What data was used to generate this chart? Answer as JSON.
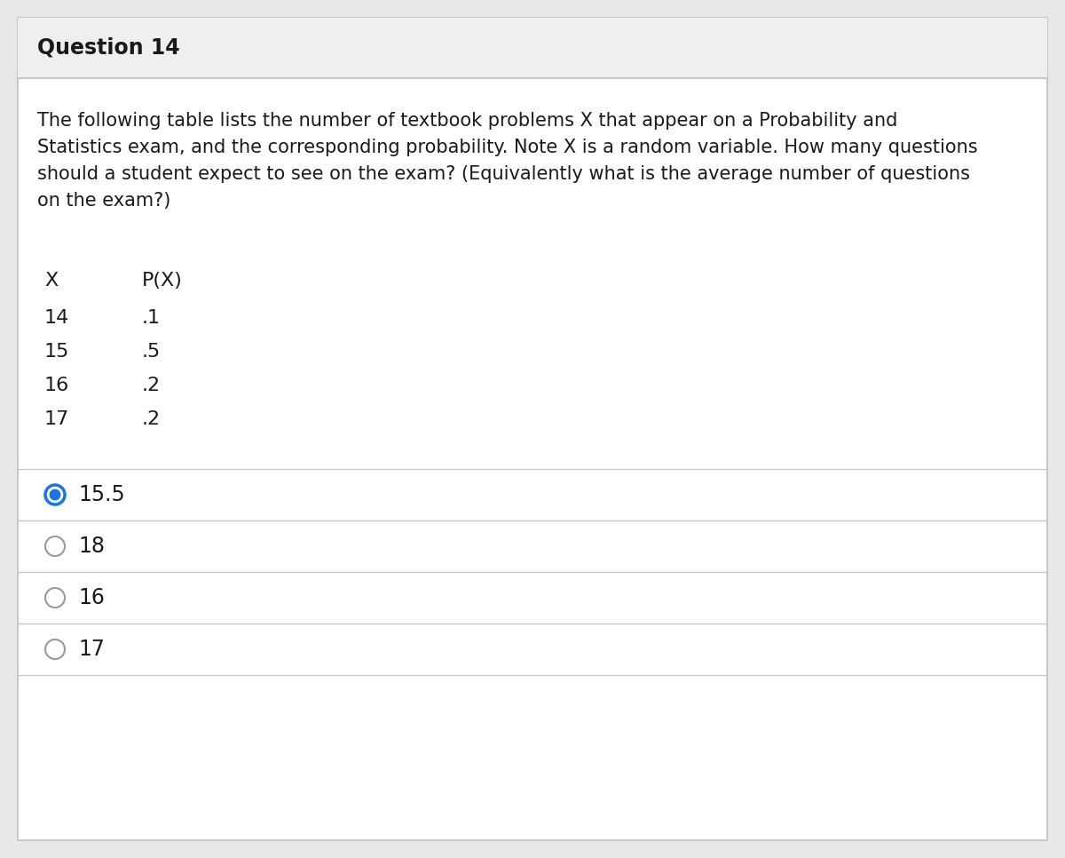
{
  "title": "Question 14",
  "question_lines": [
    "The following table lists the number of textbook problems X that appear on a Probability and",
    "Statistics exam, and the corresponding probability. Note X is a random variable. How many questions",
    "should a student expect to see on the exam? (Equivalently what is the average number of questions",
    "on the exam?)"
  ],
  "table_header": [
    "X",
    "P(X)"
  ],
  "table_data": [
    [
      "14",
      ".1"
    ],
    [
      "15",
      ".5"
    ],
    [
      "16",
      ".2"
    ],
    [
      "17",
      ".2"
    ]
  ],
  "choices": [
    "15.5",
    "18",
    "16",
    "17"
  ],
  "selected_index": 0,
  "header_bg": "#efefef",
  "body_bg": "#ffffff",
  "outer_bg": "#e8e8e8",
  "border_color": "#c8c8c8",
  "title_fontsize": 17,
  "body_fontsize": 15,
  "table_fontsize": 16,
  "choice_fontsize": 17,
  "selected_color": "#1a73e8",
  "unselected_color": "#999999",
  "text_color": "#1a1a1a"
}
